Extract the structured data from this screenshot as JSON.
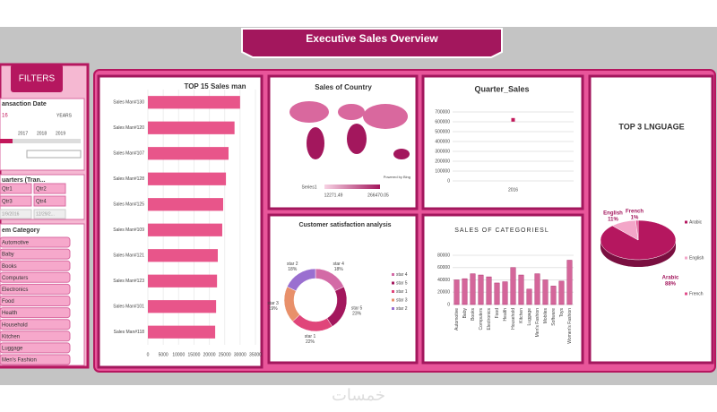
{
  "header": {
    "title": "Executive Sales Overview"
  },
  "filters": {
    "title": "FILTERS",
    "date": {
      "title": "ansaction Date",
      "selected": "16",
      "unit": "YEARS",
      "years": [
        "2017",
        "2018",
        "2019"
      ]
    },
    "quarters": {
      "title": "uarters (Tran...",
      "items": [
        "Qtr1",
        "Qtr2",
        "Qtr3",
        "Qtr4"
      ],
      "dates": [
        "1/9/2016",
        "12/29/2..."
      ]
    },
    "category": {
      "title": "em Category",
      "items": [
        "Automotive",
        "Baby",
        "Books",
        "Computers",
        "Electronics",
        "Food",
        "Health",
        "Household",
        "Kitchen",
        "Luggage",
        "Men's Fashion"
      ]
    }
  },
  "watermark": "خمسات",
  "chart_data": [
    {
      "type": "hbar",
      "title": "TOP 15 Sales man",
      "color": "#e8558a",
      "categories": [
        "Sales Man#130",
        "Sales Man#120",
        "Sales Man#107",
        "Sales Man#128",
        "Sales Man#125",
        "Sales Man#109",
        "Sales Man#121",
        "Sales Man#123",
        "Sales Man#101",
        "Sales Man#118"
      ],
      "values": [
        30000,
        28200,
        26250,
        25400,
        24500,
        24200,
        22750,
        22500,
        22200,
        21900
      ],
      "xlim": [
        0,
        35000
      ],
      "xticks": [
        0,
        5000,
        10000,
        15000,
        20000,
        25000,
        30000,
        35000
      ],
      "grid": true
    },
    {
      "type": "map",
      "title": "Sales of Country",
      "color": "#a3175d",
      "legend_title": "Series1",
      "value_range": [
        12271.49,
        266470.05
      ],
      "attribution": "Powered by Bing"
    },
    {
      "type": "scatter",
      "title": "Quarter_Sales",
      "color": "#c2185b",
      "categories": [
        "2016"
      ],
      "values": [
        620000
      ],
      "ylim": [
        0,
        700000
      ],
      "yticks": [
        0,
        100000,
        200000,
        300000,
        400000,
        500000,
        600000,
        700000
      ],
      "grid": true
    },
    {
      "type": "donut",
      "title": "Customer satisfaction analysis",
      "categories": [
        "star 4",
        "star 5",
        "star 1",
        "star 3",
        "star 2"
      ],
      "values": [
        18,
        23,
        22,
        19,
        18
      ],
      "value_labels": [
        "18%",
        "23%",
        "22%",
        "19%",
        "18%"
      ],
      "colors": [
        "#d36aa6",
        "#a3175d",
        "#e0457a",
        "#e8906a",
        "#9a6fd0"
      ]
    },
    {
      "type": "bar",
      "title": "SALES OF CATEGORIESL",
      "color": "#d4669a",
      "categories": [
        "Automotive",
        "Baby",
        "Books",
        "Computers",
        "Electronics",
        "Food",
        "Health",
        "Household",
        "Kitchen",
        "Luggage",
        "Men's Fashion",
        "Mobiles",
        "Software",
        "Toys",
        "Women's Fashion"
      ],
      "values": [
        40000,
        42000,
        50000,
        48000,
        45000,
        35000,
        37000,
        60000,
        48000,
        25000,
        50000,
        40000,
        30000,
        38000,
        72000
      ],
      "ylim": [
        0,
        80000
      ],
      "yticks": [
        0,
        20000,
        40000,
        60000,
        80000
      ],
      "grid": true
    },
    {
      "type": "pie",
      "title": "TOP 3 LNGUAGE",
      "categories": [
        "Arabic",
        "English",
        "French"
      ],
      "values": [
        88,
        11,
        1
      ],
      "value_labels": [
        "88%",
        "11%",
        "1%"
      ],
      "colors": [
        "#b5175f",
        "#f3a6c8",
        "#e04c8a"
      ],
      "legend": "right"
    }
  ]
}
